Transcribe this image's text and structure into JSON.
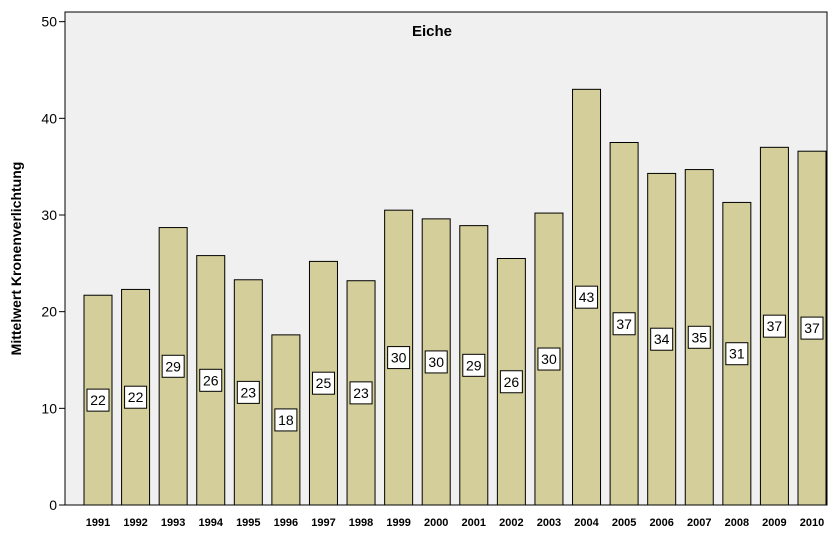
{
  "chart_data": {
    "type": "bar",
    "title": "Eiche",
    "ylabel": "Mittelwert Kronenverlichtung",
    "xlabel": "",
    "categories": [
      "1991",
      "1992",
      "1993",
      "1994",
      "1995",
      "1996",
      "1997",
      "1998",
      "1999",
      "2000",
      "2001",
      "2002",
      "2003",
      "2004",
      "2005",
      "2006",
      "2007",
      "2008",
      "2009",
      "2010"
    ],
    "values": [
      21.7,
      22.3,
      28.7,
      25.8,
      23.3,
      17.6,
      25.2,
      23.2,
      30.5,
      29.6,
      28.9,
      25.5,
      30.2,
      43.0,
      37.5,
      34.3,
      34.7,
      31.3,
      37.0,
      36.6
    ],
    "data_labels": [
      "22",
      "22",
      "29",
      "26",
      "23",
      "18",
      "25",
      "23",
      "30",
      "30",
      "29",
      "26",
      "30",
      "43",
      "37",
      "34",
      "35",
      "31",
      "37",
      "37"
    ],
    "yticks": [
      0,
      10,
      20,
      30,
      40,
      50
    ],
    "ylim": [
      0,
      51
    ],
    "grid": false,
    "colors": {
      "bar_fill": "#d4cf9a",
      "plot_background": "#f0f0f0"
    }
  }
}
